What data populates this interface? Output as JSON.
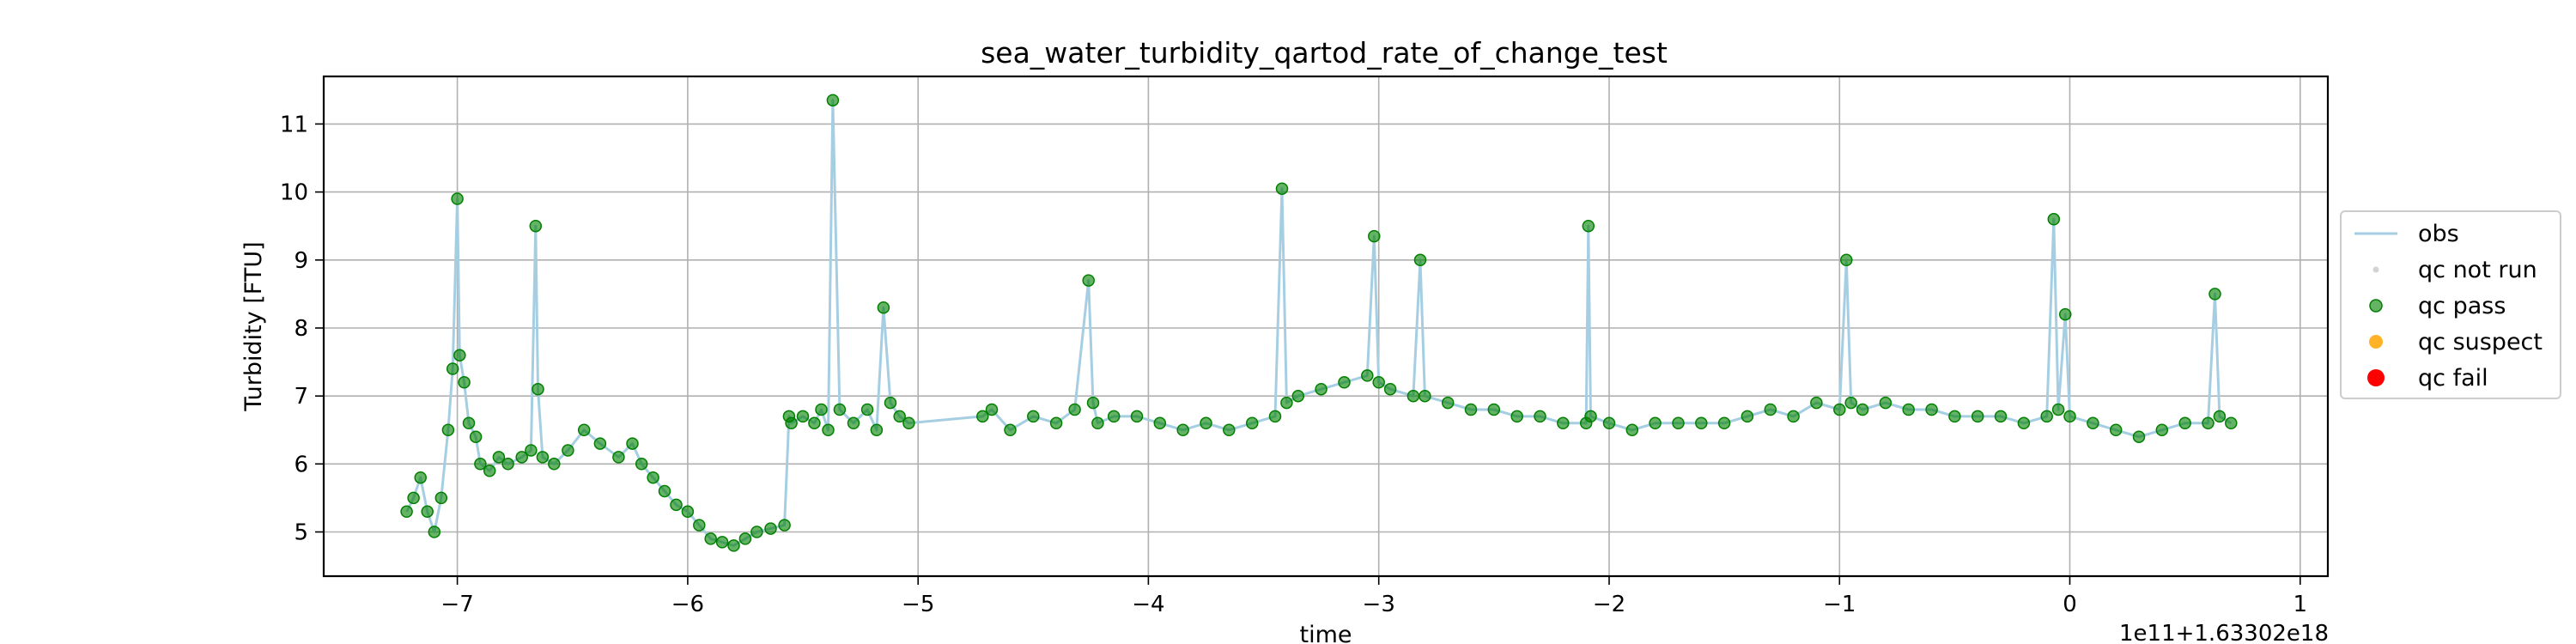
{
  "chart_data": {
    "type": "scatter",
    "title": "sea_water_turbidity_qartod_rate_of_change_test",
    "xlabel": "time",
    "ylabel": "Turbidity [FTU]",
    "x_offset_label": "1e11+1.63302e18",
    "xlim": [
      -7.58,
      1.12
    ],
    "ylim": [
      4.35,
      11.7
    ],
    "xticks": [
      -7,
      -6,
      -5,
      -4,
      -3,
      -2,
      -1,
      0,
      1
    ],
    "xtick_labels": [
      "−7",
      "−6",
      "−5",
      "−4",
      "−3",
      "−2",
      "−1",
      "0",
      "1"
    ],
    "yticks": [
      5,
      6,
      7,
      8,
      9,
      10,
      11
    ],
    "ytick_labels": [
      "5",
      "6",
      "7",
      "8",
      "9",
      "10",
      "11"
    ],
    "grid": true,
    "legend_position": "right, outside plot",
    "legend": [
      "obs",
      "qc not run",
      "qc pass",
      "qc suspect",
      "qc fail"
    ],
    "colors": {
      "obs": "#a6cee3",
      "qc_not_run": "#d3d3d3",
      "qc_pass": "#008000",
      "qc_suspect": "#ffa500",
      "qc_fail": "#ff0000",
      "grid": "#b0b0b0"
    },
    "series": [
      {
        "name": "obs",
        "style": "line",
        "x": [
          -7.22,
          -7.19,
          -7.16,
          -7.13,
          -7.1,
          -7.07,
          -7.04,
          -7.02,
          -7.0,
          -6.99,
          -6.97,
          -6.95,
          -6.92,
          -6.9,
          -6.86,
          -6.82,
          -6.78,
          -6.72,
          -6.68,
          -6.66,
          -6.65,
          -6.63,
          -6.58,
          -6.52,
          -6.45,
          -6.38,
          -6.3,
          -6.24,
          -6.2,
          -6.15,
          -6.1,
          -6.05,
          -6.0,
          -5.95,
          -5.9,
          -5.85,
          -5.8,
          -5.75,
          -5.7,
          -5.64,
          -5.58,
          -5.56,
          -5.55,
          -5.5,
          -5.45,
          -5.42,
          -5.39,
          -5.37,
          -5.34,
          -5.28,
          -5.22,
          -5.18,
          -5.15,
          -5.12,
          -5.08,
          -5.04,
          -4.72,
          -4.68,
          -4.6,
          -4.5,
          -4.4,
          -4.32,
          -4.26,
          -4.24,
          -4.22,
          -4.15,
          -4.05,
          -3.95,
          -3.85,
          -3.75,
          -3.65,
          -3.55,
          -3.45,
          -3.42,
          -3.4,
          -3.35,
          -3.25,
          -3.15,
          -3.05,
          -3.02,
          -3.0,
          -2.95,
          -2.85,
          -2.82,
          -2.8,
          -2.7,
          -2.6,
          -2.5,
          -2.4,
          -2.3,
          -2.2,
          -2.1,
          -2.09,
          -2.08,
          -2.0,
          -1.9,
          -1.8,
          -1.7,
          -1.6,
          -1.5,
          -1.4,
          -1.3,
          -1.2,
          -1.1,
          -1.0,
          -0.97,
          -0.95,
          -0.9,
          -0.8,
          -0.7,
          -0.6,
          -0.5,
          -0.4,
          -0.3,
          -0.2,
          -0.1,
          -0.07,
          -0.05,
          -0.02,
          0.0,
          0.1,
          0.2,
          0.3,
          0.4,
          0.5,
          0.6,
          0.63,
          0.65,
          0.7
        ],
        "y": [
          5.3,
          5.5,
          5.8,
          5.3,
          5.0,
          5.5,
          6.5,
          7.4,
          9.9,
          7.6,
          7.2,
          6.6,
          6.4,
          6.0,
          5.9,
          6.1,
          6.0,
          6.1,
          6.2,
          9.5,
          7.1,
          6.1,
          6.0,
          6.2,
          6.5,
          6.3,
          6.1,
          6.3,
          6.0,
          5.8,
          5.6,
          5.4,
          5.3,
          5.1,
          4.9,
          4.85,
          4.8,
          4.9,
          5.0,
          5.05,
          5.1,
          6.7,
          6.6,
          6.7,
          6.6,
          6.8,
          6.5,
          11.35,
          6.8,
          6.6,
          6.8,
          6.5,
          8.3,
          6.9,
          6.7,
          6.6,
          6.7,
          6.8,
          6.5,
          6.7,
          6.6,
          6.8,
          8.7,
          6.9,
          6.6,
          6.7,
          6.7,
          6.6,
          6.5,
          6.6,
          6.5,
          6.6,
          6.7,
          10.05,
          6.9,
          7.0,
          7.1,
          7.2,
          7.3,
          9.35,
          7.2,
          7.1,
          7.0,
          9.0,
          7.0,
          6.9,
          6.8,
          6.8,
          6.7,
          6.7,
          6.6,
          6.6,
          9.5,
          6.7,
          6.6,
          6.5,
          6.6,
          6.6,
          6.6,
          6.6,
          6.7,
          6.8,
          6.7,
          6.9,
          6.8,
          9.0,
          6.9,
          6.8,
          6.9,
          6.8,
          6.8,
          6.7,
          6.7,
          6.7,
          6.6,
          6.7,
          9.6,
          6.8,
          8.2,
          6.7,
          6.6,
          6.5,
          6.4,
          6.5,
          6.6,
          6.6,
          8.5,
          6.7,
          6.6
        ]
      },
      {
        "name": "qc pass",
        "style": "marker",
        "x": [
          -7.22,
          -7.19,
          -7.16,
          -7.13,
          -7.1,
          -7.07,
          -7.04,
          -7.02,
          -7.0,
          -6.99,
          -6.97,
          -6.95,
          -6.92,
          -6.9,
          -6.86,
          -6.82,
          -6.78,
          -6.72,
          -6.68,
          -6.66,
          -6.65,
          -6.63,
          -6.58,
          -6.52,
          -6.45,
          -6.38,
          -6.3,
          -6.24,
          -6.2,
          -6.15,
          -6.1,
          -6.05,
          -6.0,
          -5.95,
          -5.9,
          -5.85,
          -5.8,
          -5.75,
          -5.7,
          -5.64,
          -5.58,
          -5.56,
          -5.55,
          -5.5,
          -5.45,
          -5.42,
          -5.39,
          -5.37,
          -5.34,
          -5.28,
          -5.22,
          -5.18,
          -5.15,
          -5.12,
          -5.08,
          -5.04,
          -4.72,
          -4.68,
          -4.6,
          -4.5,
          -4.4,
          -4.32,
          -4.26,
          -4.24,
          -4.22,
          -4.15,
          -4.05,
          -3.95,
          -3.85,
          -3.75,
          -3.65,
          -3.55,
          -3.45,
          -3.42,
          -3.4,
          -3.35,
          -3.25,
          -3.15,
          -3.05,
          -3.02,
          -3.0,
          -2.95,
          -2.85,
          -2.82,
          -2.8,
          -2.7,
          -2.6,
          -2.5,
          -2.4,
          -2.3,
          -2.2,
          -2.1,
          -2.09,
          -2.08,
          -2.0,
          -1.9,
          -1.8,
          -1.7,
          -1.6,
          -1.5,
          -1.4,
          -1.3,
          -1.2,
          -1.1,
          -1.0,
          -0.97,
          -0.95,
          -0.9,
          -0.8,
          -0.7,
          -0.6,
          -0.5,
          -0.4,
          -0.3,
          -0.2,
          -0.1,
          -0.07,
          -0.05,
          -0.02,
          0.0,
          0.1,
          0.2,
          0.3,
          0.4,
          0.5,
          0.6,
          0.63,
          0.65,
          0.7
        ],
        "y": [
          5.3,
          5.5,
          5.8,
          5.3,
          5.0,
          5.5,
          6.5,
          7.4,
          9.9,
          7.6,
          7.2,
          6.6,
          6.4,
          6.0,
          5.9,
          6.1,
          6.0,
          6.1,
          6.2,
          9.5,
          7.1,
          6.1,
          6.0,
          6.2,
          6.5,
          6.3,
          6.1,
          6.3,
          6.0,
          5.8,
          5.6,
          5.4,
          5.3,
          5.1,
          4.9,
          4.85,
          4.8,
          4.9,
          5.0,
          5.05,
          5.1,
          6.7,
          6.6,
          6.7,
          6.6,
          6.8,
          6.5,
          11.35,
          6.8,
          6.6,
          6.8,
          6.5,
          8.3,
          6.9,
          6.7,
          6.6,
          6.7,
          6.8,
          6.5,
          6.7,
          6.6,
          6.8,
          8.7,
          6.9,
          6.6,
          6.7,
          6.7,
          6.6,
          6.5,
          6.6,
          6.5,
          6.6,
          6.7,
          10.05,
          6.9,
          7.0,
          7.1,
          7.2,
          7.3,
          9.35,
          7.2,
          7.1,
          7.0,
          9.0,
          7.0,
          6.9,
          6.8,
          6.8,
          6.7,
          6.7,
          6.6,
          6.6,
          9.5,
          6.7,
          6.6,
          6.5,
          6.6,
          6.6,
          6.6,
          6.6,
          6.7,
          6.8,
          6.7,
          6.9,
          6.8,
          9.0,
          6.9,
          6.8,
          6.9,
          6.8,
          6.8,
          6.7,
          6.7,
          6.7,
          6.6,
          6.7,
          9.6,
          6.8,
          8.2,
          6.7,
          6.6,
          6.5,
          6.4,
          6.5,
          6.6,
          6.6,
          8.5,
          6.7,
          6.6
        ]
      }
    ]
  }
}
